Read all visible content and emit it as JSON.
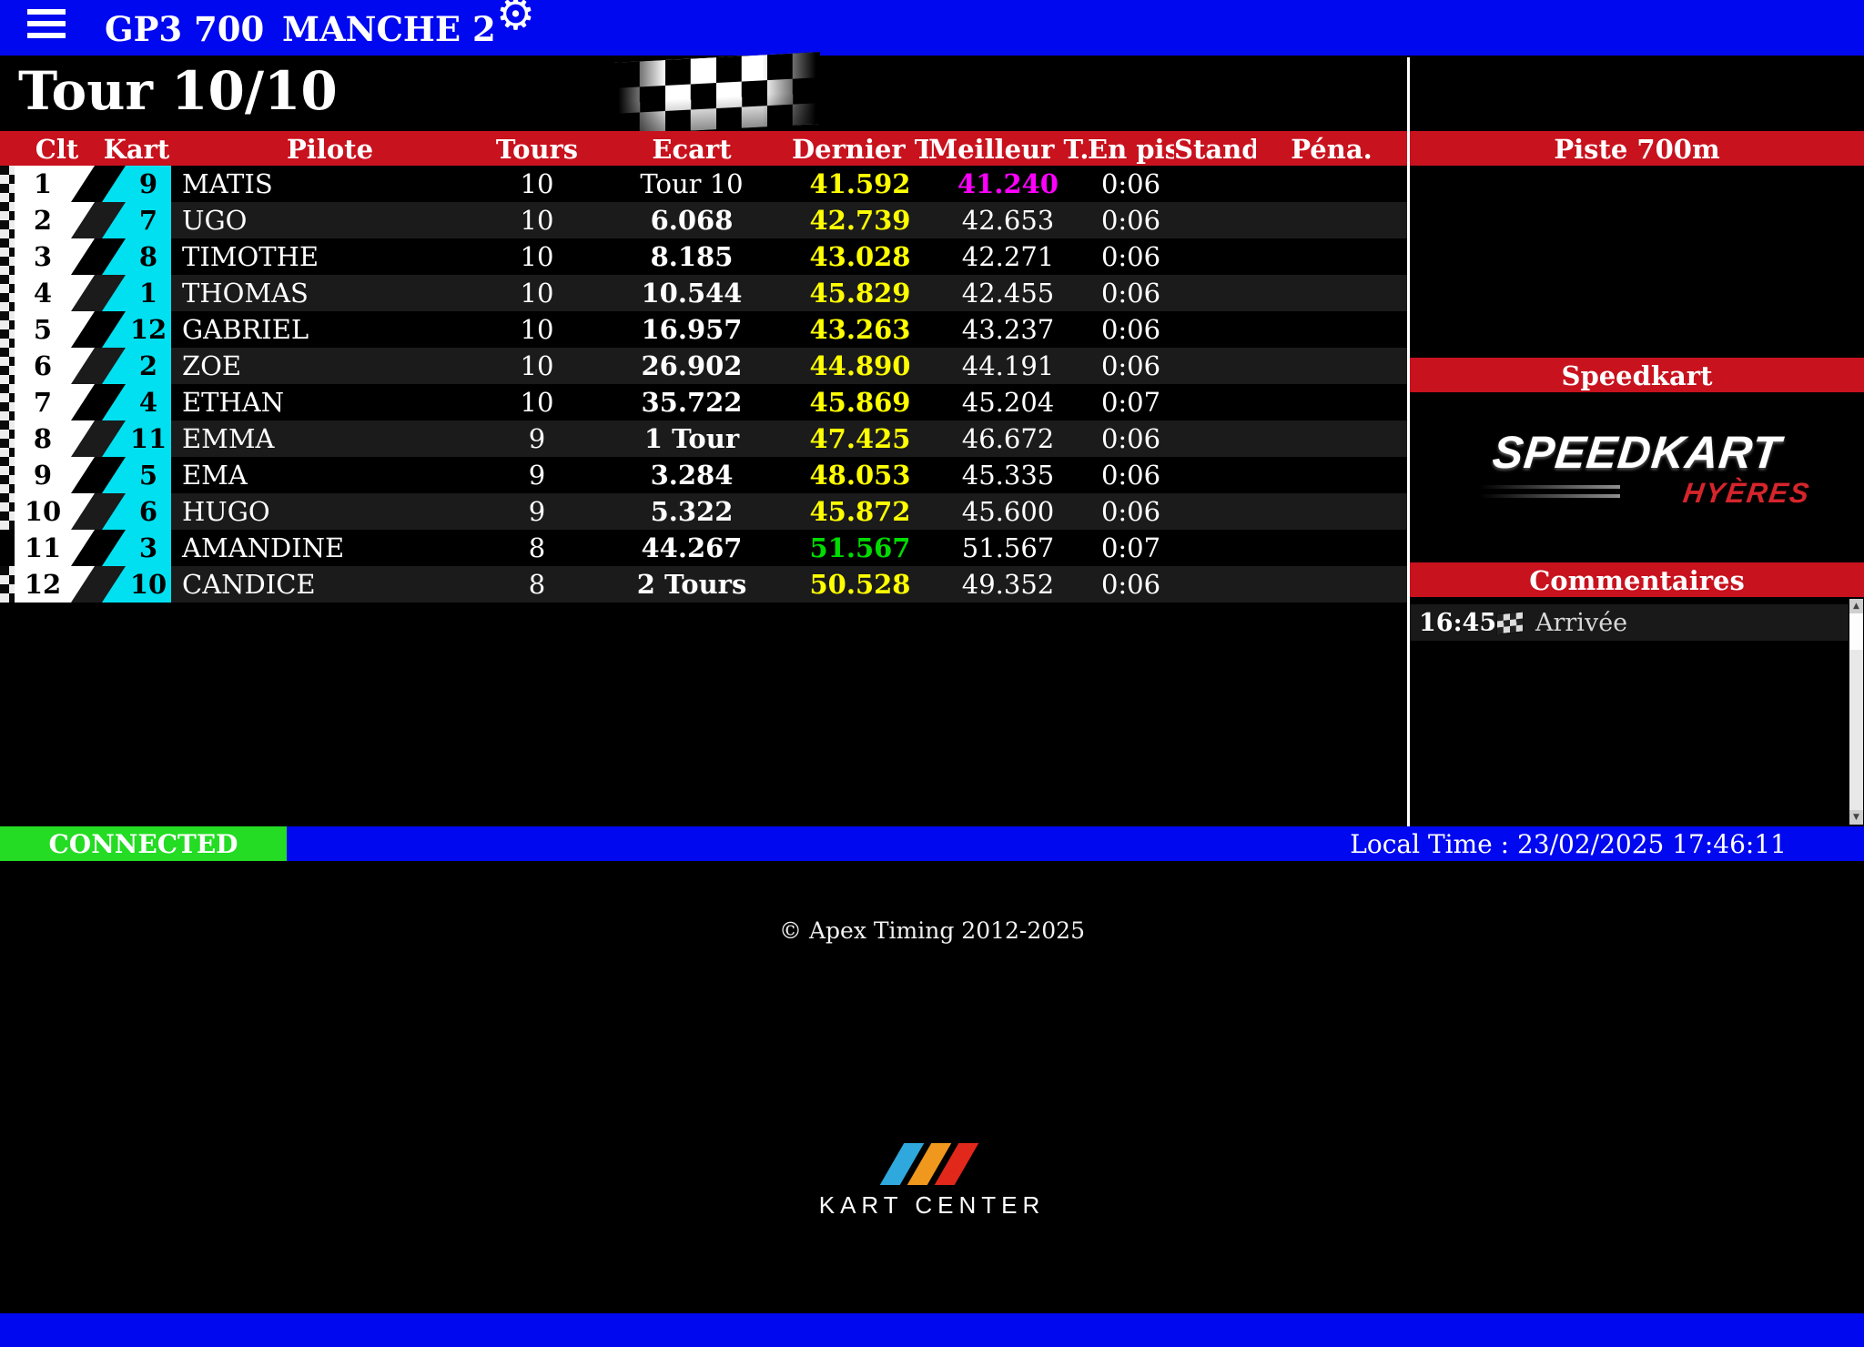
{
  "topbar": {
    "title": "GP3 700",
    "subtitle": "MANCHE 2",
    "menu_icon": "hamburger-icon",
    "settings_icon": "gear-icon"
  },
  "race": {
    "lap_counter": "Tour 10/10"
  },
  "table": {
    "headers": [
      "Clt",
      "Kart",
      "Pilote",
      "Tours",
      "Ecart",
      "Dernier T.",
      "Meilleur T.",
      "En piste",
      "Stand",
      "Péna."
    ],
    "rows": [
      {
        "pos": "1",
        "kart": "9",
        "pilot": "MATIS",
        "tours": "10",
        "ecart": "Tour 10",
        "ecart_bold": false,
        "dernier": "41.592",
        "dernier_color": "yellow",
        "meilleur": "41.240",
        "meilleur_color": "magenta",
        "en_piste": "0:06",
        "stand": "",
        "pena": "",
        "finished": true
      },
      {
        "pos": "2",
        "kart": "7",
        "pilot": "UGO",
        "tours": "10",
        "ecart": "6.068",
        "ecart_bold": true,
        "dernier": "42.739",
        "dernier_color": "yellow",
        "meilleur": "42.653",
        "meilleur_color": "white",
        "en_piste": "0:06",
        "stand": "",
        "pena": "",
        "finished": true
      },
      {
        "pos": "3",
        "kart": "8",
        "pilot": "TIMOTHE",
        "tours": "10",
        "ecart": "8.185",
        "ecart_bold": true,
        "dernier": "43.028",
        "dernier_color": "yellow",
        "meilleur": "42.271",
        "meilleur_color": "white",
        "en_piste": "0:06",
        "stand": "",
        "pena": "",
        "finished": true
      },
      {
        "pos": "4",
        "kart": "1",
        "pilot": "THOMAS",
        "tours": "10",
        "ecart": "10.544",
        "ecart_bold": true,
        "dernier": "45.829",
        "dernier_color": "yellow",
        "meilleur": "42.455",
        "meilleur_color": "white",
        "en_piste": "0:06",
        "stand": "",
        "pena": "",
        "finished": true
      },
      {
        "pos": "5",
        "kart": "12",
        "pilot": "GABRIEL",
        "tours": "10",
        "ecart": "16.957",
        "ecart_bold": true,
        "dernier": "43.263",
        "dernier_color": "yellow",
        "meilleur": "43.237",
        "meilleur_color": "white",
        "en_piste": "0:06",
        "stand": "",
        "pena": "",
        "finished": true
      },
      {
        "pos": "6",
        "kart": "2",
        "pilot": "ZOE",
        "tours": "10",
        "ecart": "26.902",
        "ecart_bold": true,
        "dernier": "44.890",
        "dernier_color": "yellow",
        "meilleur": "44.191",
        "meilleur_color": "white",
        "en_piste": "0:06",
        "stand": "",
        "pena": "",
        "finished": true
      },
      {
        "pos": "7",
        "kart": "4",
        "pilot": "ETHAN",
        "tours": "10",
        "ecart": "35.722",
        "ecart_bold": true,
        "dernier": "45.869",
        "dernier_color": "yellow",
        "meilleur": "45.204",
        "meilleur_color": "white",
        "en_piste": "0:07",
        "stand": "",
        "pena": "",
        "finished": true
      },
      {
        "pos": "8",
        "kart": "11",
        "pilot": "EMMA",
        "tours": "9",
        "ecart": "1 Tour",
        "ecart_bold": true,
        "dernier": "47.425",
        "dernier_color": "yellow",
        "meilleur": "46.672",
        "meilleur_color": "white",
        "en_piste": "0:06",
        "stand": "",
        "pena": "",
        "finished": true
      },
      {
        "pos": "9",
        "kart": "5",
        "pilot": "EMA",
        "tours": "9",
        "ecart": "3.284",
        "ecart_bold": true,
        "dernier": "48.053",
        "dernier_color": "yellow",
        "meilleur": "45.335",
        "meilleur_color": "white",
        "en_piste": "0:06",
        "stand": "",
        "pena": "",
        "finished": true
      },
      {
        "pos": "10",
        "kart": "6",
        "pilot": "HUGO",
        "tours": "9",
        "ecart": "5.322",
        "ecart_bold": true,
        "dernier": "45.872",
        "dernier_color": "yellow",
        "meilleur": "45.600",
        "meilleur_color": "white",
        "en_piste": "0:06",
        "stand": "",
        "pena": "",
        "finished": true
      },
      {
        "pos": "11",
        "kart": "3",
        "pilot": "AMANDINE",
        "tours": "8",
        "ecart": "44.267",
        "ecart_bold": true,
        "dernier": "51.567",
        "dernier_color": "green",
        "meilleur": "51.567",
        "meilleur_color": "white",
        "en_piste": "0:07",
        "stand": "",
        "pena": "",
        "finished": false
      },
      {
        "pos": "12",
        "kart": "10",
        "pilot": "CANDICE",
        "tours": "8",
        "ecart": "2 Tours",
        "ecart_bold": true,
        "dernier": "50.528",
        "dernier_color": "yellow",
        "meilleur": "49.352",
        "meilleur_color": "white",
        "en_piste": "0:06",
        "stand": "",
        "pena": "",
        "finished": true
      }
    ]
  },
  "sidebar": {
    "track_header": "Piste 700m",
    "brand_header": "Speedkart",
    "brand_logo": {
      "name": "SPEEDKART",
      "city": "HYÈRES"
    },
    "comments_header": "Commentaires",
    "comments": [
      {
        "time": "16:45",
        "icon": "checkered-flag-icon",
        "text": "Arrivée"
      }
    ],
    "scrollbar": {
      "up_arrow": "▲",
      "down_arrow": "▼"
    }
  },
  "statusbar": {
    "connection": "CONNECTED",
    "local_time": "Local Time : 23/02/2025 17:46:11"
  },
  "footer": {
    "copyright": "© Apex Timing 2012-2025",
    "logo_text": "KART CENTER"
  },
  "colors": {
    "topbar_blue": "#0008F0",
    "header_red": "#C8121E",
    "kart_cyan": "#00E0F0",
    "last_lap_yellow": "#FFFF00",
    "overall_best_magenta": "#FF00FF",
    "personal_best_green": "#00DC00",
    "connected_green": "#23DC23"
  }
}
